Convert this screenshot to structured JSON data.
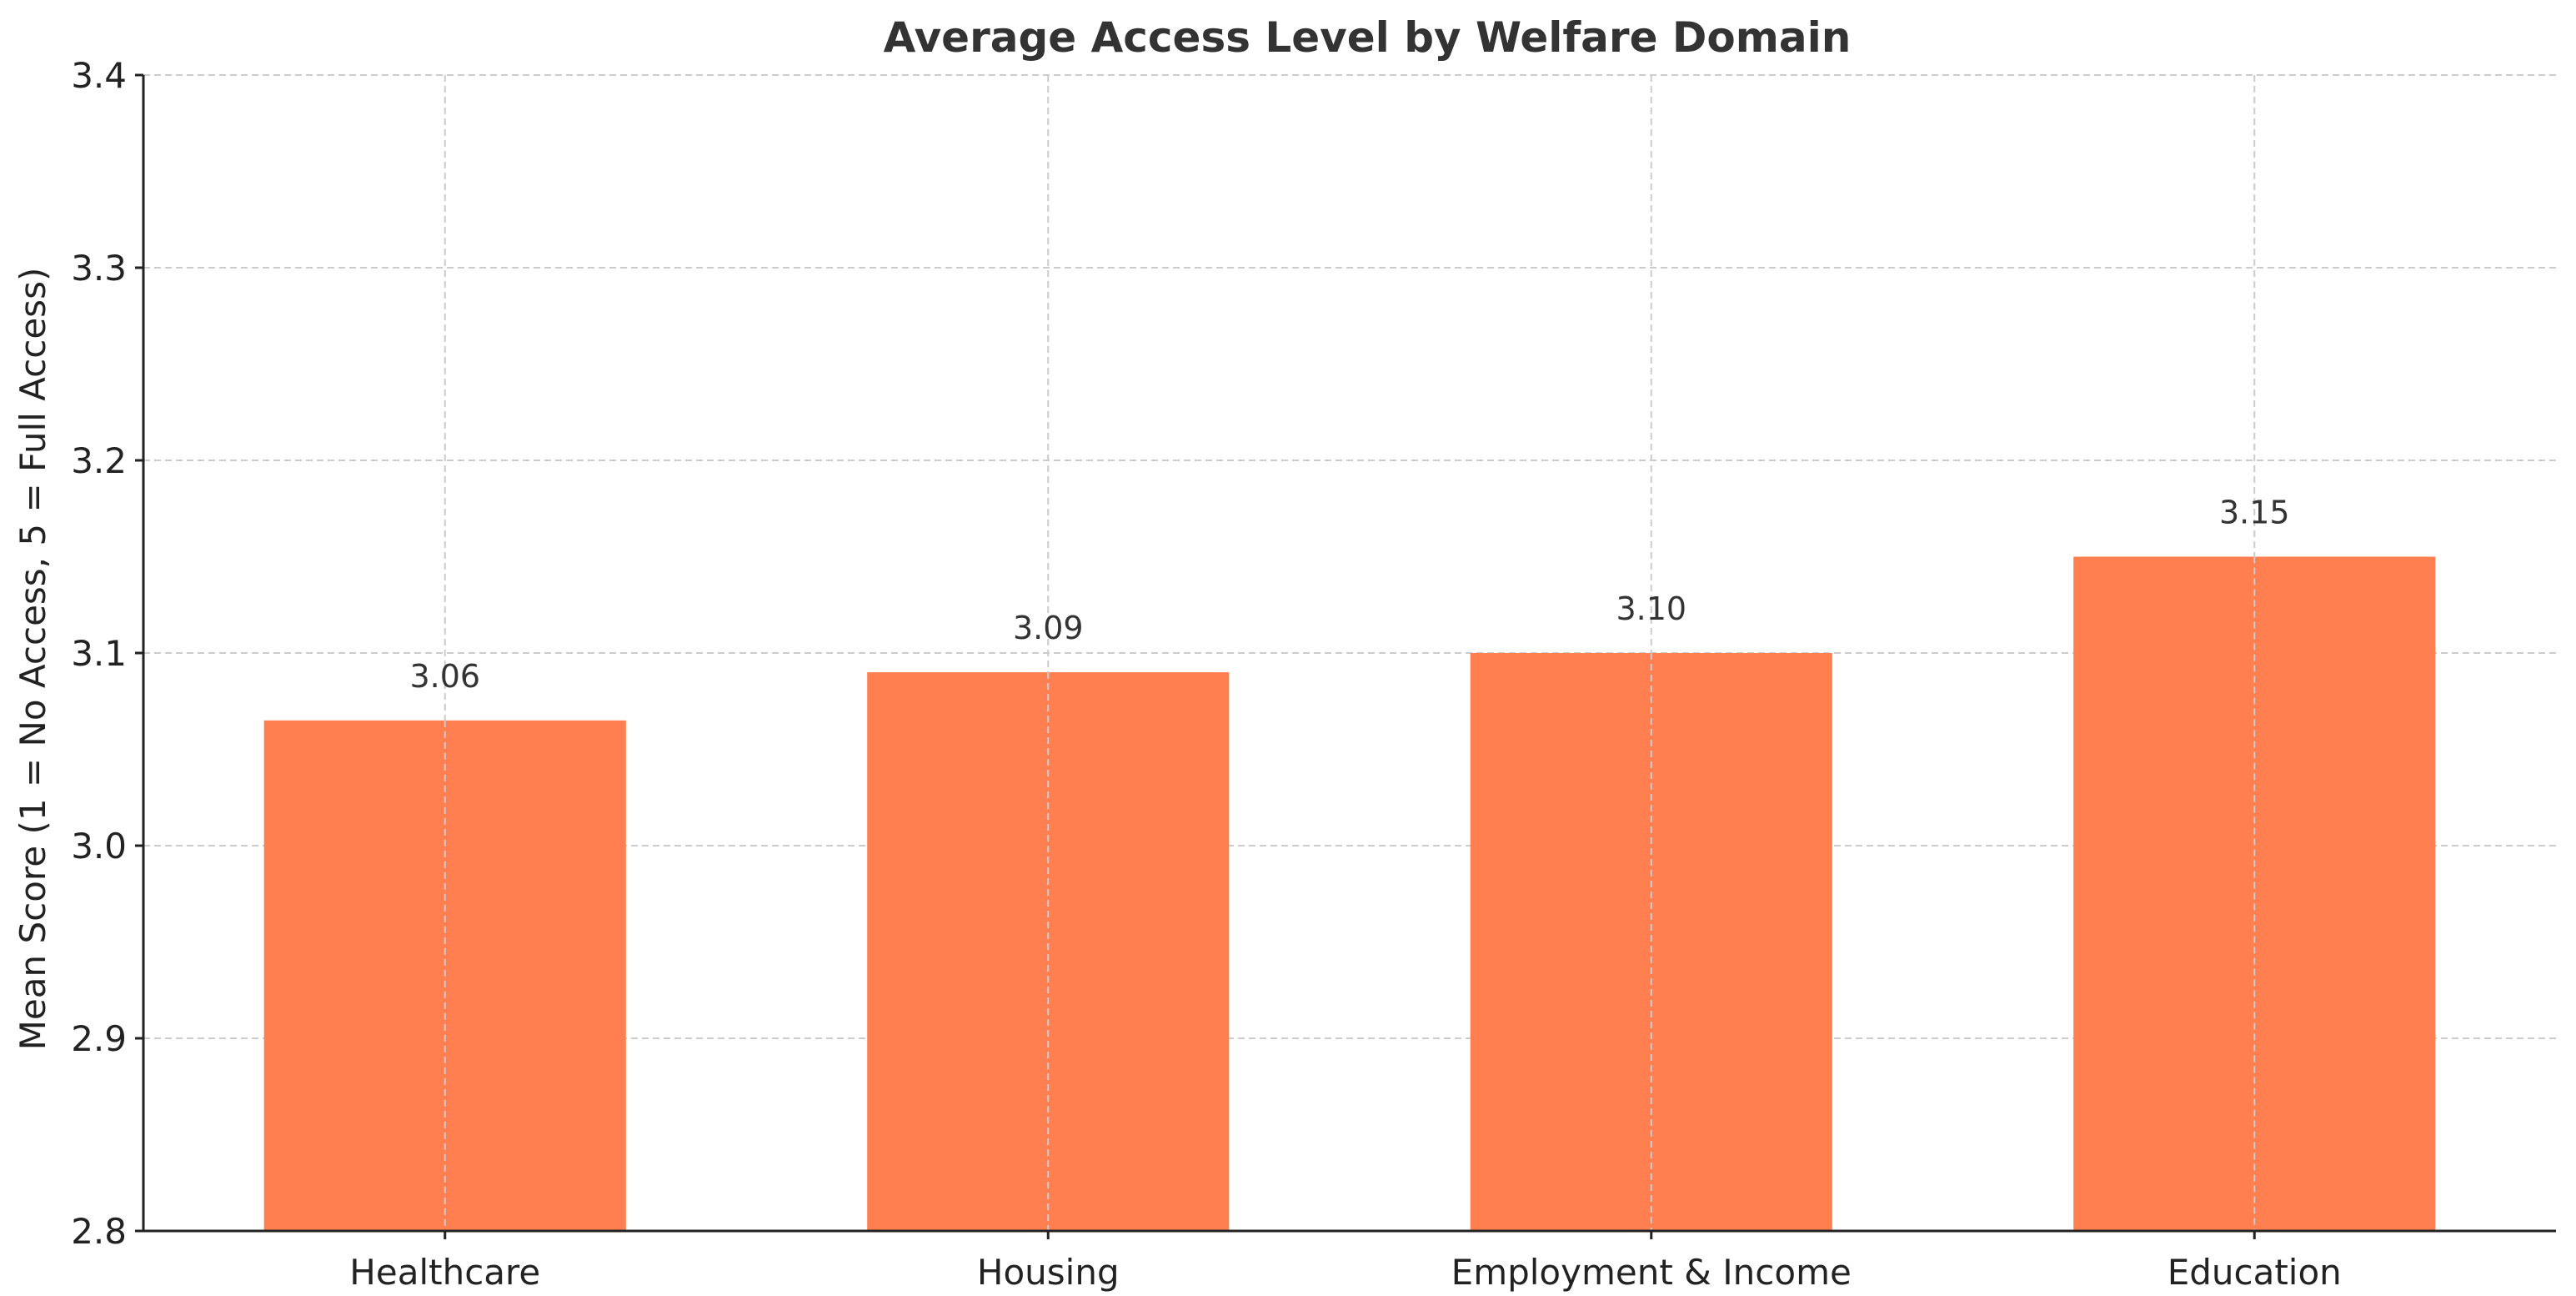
{
  "chart_data": {
    "type": "bar",
    "title": "Average Access Level by Welfare Domain",
    "xlabel": "",
    "ylabel": "Mean Score (1 = No Access, 5 = Full Access)",
    "categories": [
      "Healthcare",
      "Housing",
      "Employment & Income",
      "Education"
    ],
    "values": [
      3.065,
      3.09,
      3.1,
      3.15
    ],
    "value_labels": [
      "3.06",
      "3.09",
      "3.10",
      "3.15"
    ],
    "ylim": [
      2.8,
      3.4
    ],
    "yticks": [
      2.8,
      2.9,
      3.0,
      3.1,
      3.2,
      3.3,
      3.4
    ],
    "ytick_labels": [
      "2.8",
      "2.9",
      "3.0",
      "3.1",
      "3.2",
      "3.3",
      "3.4"
    ],
    "grid": true,
    "legend": "none",
    "colors": {
      "bar": "#FF7F50",
      "grid": "#cccccc",
      "axis": "#222222",
      "text": "#333333"
    }
  }
}
